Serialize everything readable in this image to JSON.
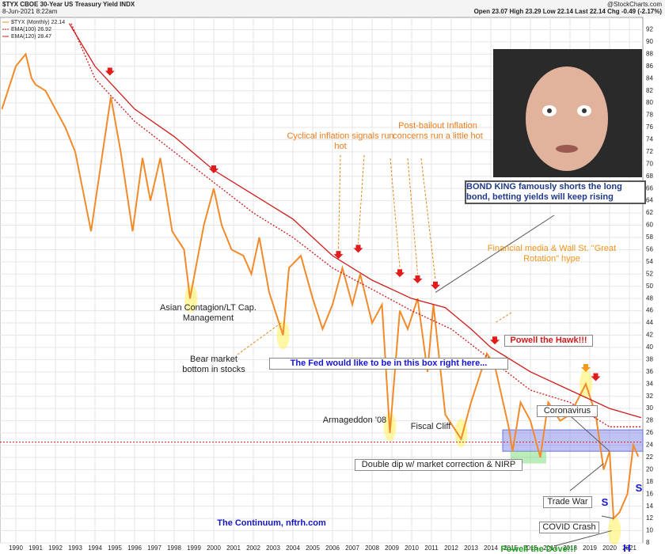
{
  "chart_data": {
    "type": "line",
    "title": "$TYX CBOE 30-Year US Treasury Yield INDX",
    "date": "8-Jun-2021 8:22am",
    "source": "@StockCharts.com",
    "quote": "Open 23.07 High 23.29 Low 22.14 Last 22.14 Chg -0.49 (-2.17%)",
    "xlim": [
      1989.2,
      2021.68
    ],
    "ylim": [
      8,
      94
    ],
    "xticks": [
      1990,
      1991,
      1992,
      1993,
      1994,
      1995,
      1996,
      1997,
      1998,
      1999,
      2000,
      2001,
      2002,
      2003,
      2004,
      2005,
      2006,
      2007,
      2008,
      2009,
      2010,
      2011,
      2012,
      2013,
      2014,
      2015,
      2016,
      2017,
      2018,
      2019,
      2020,
      2021
    ],
    "yticks": [
      8,
      10,
      12,
      14,
      16,
      18,
      20,
      22,
      24,
      26,
      28,
      30,
      32,
      34,
      36,
      38,
      40,
      42,
      44,
      46,
      48,
      50,
      52,
      54,
      56,
      58,
      60,
      62,
      64,
      66,
      68,
      70,
      72,
      74,
      76,
      78,
      80,
      82,
      84,
      86,
      88,
      90,
      92
    ],
    "grid": true,
    "reference_line": 24.5,
    "series": [
      {
        "name": "$TYX (Monthly) 22.14",
        "color": "#f28a2a",
        "x": [
          1989.3,
          1990.0,
          1990.5,
          1990.8,
          1991.0,
          1991.5,
          1992.0,
          1992.5,
          1993.0,
          1993.8,
          1994.3,
          1994.8,
          1995.3,
          1995.9,
          1996.4,
          1996.8,
          1997.3,
          1997.9,
          1998.5,
          1998.8,
          1999.5,
          2000.0,
          2000.4,
          2000.9,
          2001.5,
          2001.9,
          2002.3,
          2002.8,
          2003.5,
          2003.8,
          2004.4,
          2005.0,
          2005.5,
          2006.0,
          2006.5,
          2007.0,
          2007.4,
          2008.0,
          2008.5,
          2008.9,
          2009.4,
          2009.8,
          2010.3,
          2010.8,
          2011.1,
          2011.7,
          2012.5,
          2013.0,
          2013.8,
          2014.2,
          2014.9,
          2015.1,
          2015.5,
          2016.0,
          2016.5,
          2016.9,
          2017.5,
          2018.0,
          2018.8,
          2019.3,
          2019.7,
          2020.0,
          2020.2,
          2020.5,
          2020.9,
          2021.2,
          2021.45
        ],
        "values": [
          79,
          86,
          88,
          84,
          83,
          82,
          79,
          76,
          72,
          59,
          70,
          81,
          72,
          59,
          71,
          64,
          71,
          59,
          56,
          48,
          60,
          66,
          60,
          56,
          55,
          52,
          58,
          49,
          42,
          53,
          55,
          48,
          43,
          47,
          53,
          47,
          52,
          44,
          47,
          26,
          46,
          43,
          48,
          36,
          47,
          29,
          25,
          31,
          39,
          37,
          27,
          23,
          31,
          28,
          22,
          31,
          28,
          29,
          34,
          29,
          20,
          23,
          12,
          13,
          16,
          24,
          22.14
        ]
      },
      {
        "name": "EMA(100) 26.92",
        "color": "#d11a1a",
        "dash": true,
        "x": [
          1992.8,
          1994,
          1996,
          1998,
          2000,
          2002,
          2004,
          2006,
          2008,
          2010,
          2012,
          2014,
          2016,
          2018,
          2020,
          2021.6
        ],
        "values": [
          93,
          84,
          77,
          72,
          67,
          62,
          58,
          53,
          49.5,
          46,
          43,
          38,
          33,
          31,
          27,
          27
        ]
      },
      {
        "name": "EMA(120) 28.47",
        "color": "#d11a1a",
        "dash": false,
        "x": [
          1992.7,
          1994,
          1996,
          1998,
          2000,
          2002,
          2004,
          2006,
          2008,
          2010,
          2011.7,
          2013,
          2014,
          2016,
          2018,
          2020,
          2021.6
        ],
        "values": [
          93,
          86,
          79,
          74.5,
          69,
          65,
          61,
          55,
          51,
          48,
          46.5,
          43,
          40,
          36,
          33,
          30,
          28.5
        ]
      }
    ],
    "annotations": [
      "Cyclical inflation signals run hot",
      "Post-bailout Inflation concerns run a little hot",
      "BOND KING famously shorts the long bond, betting yields will keep rising",
      "Financial media & Wall St. \"Great Rotation\" hype",
      "Asian Contagion/LT Cap. Management",
      "Bear market bottom in stocks",
      "The Fed would like to be in this box right here...",
      "Powell the Hawk!!!",
      "Armageddon '08",
      "Fiscal Cliff",
      "Coronavirus",
      "Double dip w/ market correction & NIRP",
      "Trade War",
      "COVID Crash",
      "Powell the Dove!!!",
      "The Continuum, nftrh.com",
      "S",
      "S",
      "H"
    ]
  }
}
